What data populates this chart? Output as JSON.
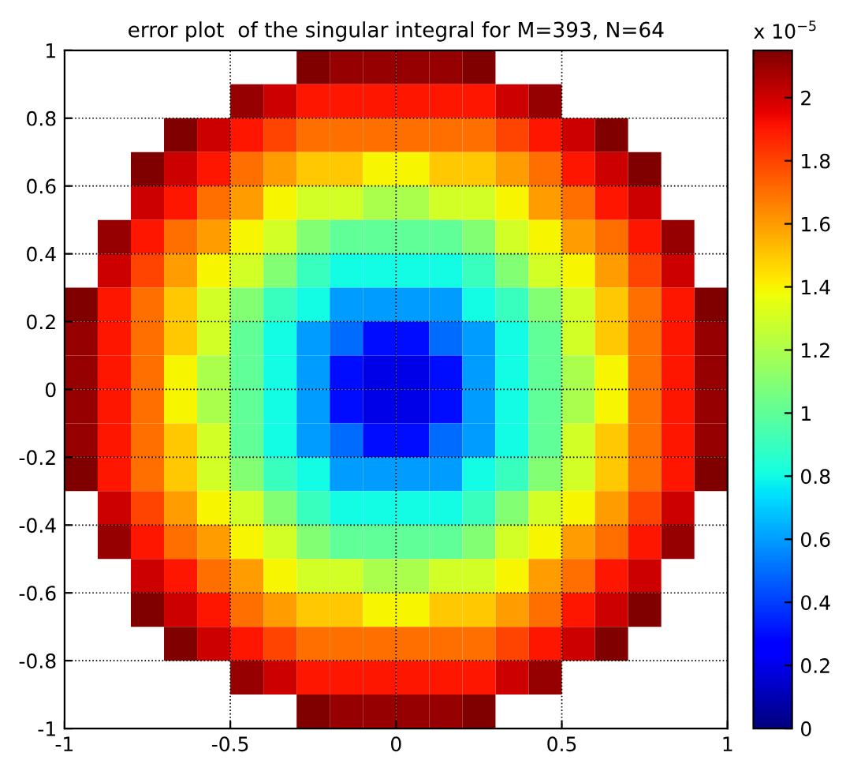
{
  "chart_data": {
    "type": "heatmap",
    "title": "error plot  of the singular integral for M=393, N=64",
    "xlim": [
      -1,
      1
    ],
    "ylim": [
      -1,
      1
    ],
    "xticks": [
      -1,
      -0.5,
      0,
      0.5,
      1
    ],
    "yticks": [
      -1,
      -0.8,
      -0.6,
      -0.4,
      -0.2,
      0,
      0.2,
      0.4,
      0.6,
      0.8,
      1
    ],
    "grid": true,
    "clim": [
      0,
      2.15
    ],
    "cticks": [
      0,
      0.2,
      0.4,
      0.6,
      0.8,
      1,
      1.2,
      1.4,
      1.6,
      1.8,
      2
    ],
    "annotations": [
      "x 10$^{−5}$"
    ],
    "cells": [
      [
        null,
        null,
        null,
        null,
        null,
        null,
        null,
        2.2,
        2.1,
        2.1,
        2.1,
        2.1,
        2.2,
        null,
        null,
        null,
        null,
        null,
        null,
        null
      ],
      [
        null,
        null,
        null,
        null,
        null,
        2.1,
        2.0,
        1.9,
        1.9,
        1.9,
        1.9,
        1.9,
        1.9,
        2.0,
        2.1,
        null,
        null,
        null,
        null,
        null
      ],
      [
        null,
        null,
        null,
        2.2,
        2.0,
        1.9,
        1.8,
        1.7,
        1.7,
        1.7,
        1.7,
        1.7,
        1.7,
        1.8,
        1.9,
        2.0,
        2.2,
        null,
        null,
        null
      ],
      [
        null,
        null,
        2.2,
        2.0,
        1.9,
        1.7,
        1.6,
        1.5,
        1.5,
        1.4,
        1.4,
        1.5,
        1.5,
        1.6,
        1.7,
        1.9,
        2.0,
        2.2,
        null,
        null
      ],
      [
        null,
        null,
        2.0,
        1.9,
        1.7,
        1.6,
        1.4,
        1.3,
        1.3,
        1.2,
        1.2,
        1.3,
        1.3,
        1.4,
        1.6,
        1.7,
        1.9,
        2.0,
        null,
        null
      ],
      [
        null,
        2.1,
        1.9,
        1.7,
        1.6,
        1.4,
        1.3,
        1.1,
        1.0,
        1.0,
        1.0,
        1.0,
        1.1,
        1.3,
        1.4,
        1.6,
        1.7,
        1.9,
        2.1,
        null
      ],
      [
        null,
        2.0,
        1.8,
        1.6,
        1.4,
        1.3,
        1.1,
        0.9,
        0.8,
        0.8,
        0.8,
        0.8,
        0.9,
        1.1,
        1.3,
        1.4,
        1.6,
        1.8,
        2.0,
        null
      ],
      [
        2.2,
        1.9,
        1.7,
        1.5,
        1.3,
        1.1,
        0.9,
        0.8,
        0.6,
        0.6,
        0.6,
        0.6,
        0.8,
        0.9,
        1.1,
        1.3,
        1.5,
        1.7,
        1.9,
        2.2
      ],
      [
        2.1,
        1.9,
        1.7,
        1.5,
        1.3,
        1.0,
        0.8,
        0.6,
        0.5,
        0.3,
        0.3,
        0.5,
        0.6,
        0.8,
        1.0,
        1.3,
        1.5,
        1.7,
        1.9,
        2.1
      ],
      [
        2.1,
        1.9,
        1.7,
        1.4,
        1.2,
        1.0,
        0.8,
        0.6,
        0.3,
        0.2,
        0.2,
        0.3,
        0.6,
        0.8,
        1.0,
        1.2,
        1.4,
        1.7,
        1.9,
        2.1
      ],
      [
        2.1,
        1.9,
        1.7,
        1.4,
        1.2,
        1.0,
        0.8,
        0.6,
        0.3,
        0.2,
        0.2,
        0.3,
        0.6,
        0.8,
        1.0,
        1.2,
        1.4,
        1.7,
        1.9,
        2.1
      ],
      [
        2.1,
        1.9,
        1.7,
        1.5,
        1.3,
        1.0,
        0.8,
        0.6,
        0.5,
        0.3,
        0.3,
        0.5,
        0.6,
        0.8,
        1.0,
        1.3,
        1.5,
        1.7,
        1.9,
        2.1
      ],
      [
        2.2,
        1.9,
        1.7,
        1.5,
        1.3,
        1.1,
        0.9,
        0.8,
        0.6,
        0.6,
        0.6,
        0.6,
        0.8,
        0.9,
        1.1,
        1.3,
        1.5,
        1.7,
        1.9,
        2.2
      ],
      [
        null,
        2.0,
        1.8,
        1.6,
        1.4,
        1.3,
        1.1,
        0.9,
        0.8,
        0.8,
        0.8,
        0.8,
        0.9,
        1.1,
        1.3,
        1.4,
        1.6,
        1.8,
        2.0,
        null
      ],
      [
        null,
        2.1,
        1.9,
        1.7,
        1.6,
        1.4,
        1.3,
        1.1,
        1.0,
        1.0,
        1.0,
        1.0,
        1.1,
        1.3,
        1.4,
        1.6,
        1.7,
        1.9,
        2.1,
        null
      ],
      [
        null,
        null,
        2.0,
        1.9,
        1.7,
        1.6,
        1.4,
        1.3,
        1.3,
        1.2,
        1.2,
        1.3,
        1.3,
        1.4,
        1.6,
        1.7,
        1.9,
        2.0,
        null,
        null
      ],
      [
        null,
        null,
        2.2,
        2.0,
        1.9,
        1.7,
        1.6,
        1.5,
        1.5,
        1.4,
        1.4,
        1.5,
        1.5,
        1.6,
        1.7,
        1.9,
        2.0,
        2.2,
        null,
        null
      ],
      [
        null,
        null,
        null,
        2.2,
        2.0,
        1.9,
        1.8,
        1.7,
        1.7,
        1.7,
        1.7,
        1.7,
        1.7,
        1.8,
        1.9,
        2.0,
        2.2,
        null,
        null,
        null
      ],
      [
        null,
        null,
        null,
        null,
        null,
        2.1,
        2.0,
        1.9,
        1.9,
        1.9,
        1.9,
        1.9,
        1.9,
        2.0,
        2.1,
        null,
        null,
        null,
        null,
        null
      ],
      [
        null,
        null,
        null,
        null,
        null,
        null,
        null,
        2.2,
        2.1,
        2.1,
        2.1,
        2.1,
        2.2,
        null,
        null,
        null,
        null,
        null,
        null,
        null
      ]
    ]
  }
}
